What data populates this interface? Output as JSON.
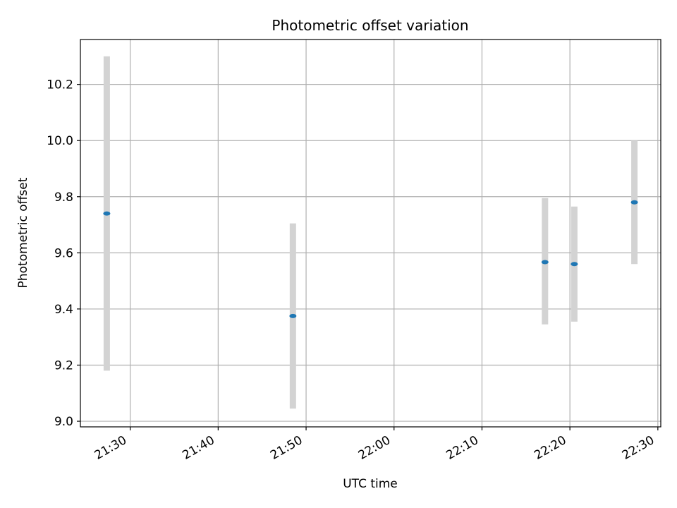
{
  "chart_data": {
    "type": "scatter",
    "title": "Photometric offset variation",
    "xlabel": "UTC time",
    "ylabel": "Photometric offset",
    "x_ticks": [
      "21:30",
      "21:40",
      "21:50",
      "22:00",
      "22:10",
      "22:20",
      "22:30"
    ],
    "y_ticks": [
      "9.0",
      "9.2",
      "9.4",
      "9.6",
      "9.8",
      "10.0",
      "10.2"
    ],
    "xlim": [
      "21:24:20",
      "22:30:20"
    ],
    "ylim": [
      8.98,
      10.36
    ],
    "grid": true,
    "colors": {
      "marker": "#1f77b4",
      "errorbar": "#d3d3d3",
      "grid": "#b0b0b0",
      "axes": "#000000"
    },
    "points": [
      {
        "x": "21:27:20",
        "y": 9.74,
        "ylow": 9.18,
        "yhigh": 10.3
      },
      {
        "x": "21:48:30",
        "y": 9.375,
        "ylow": 9.045,
        "yhigh": 9.705
      },
      {
        "x": "22:17:10",
        "y": 9.567,
        "ylow": 9.345,
        "yhigh": 9.795
      },
      {
        "x": "22:20:30",
        "y": 9.56,
        "ylow": 9.355,
        "yhigh": 9.765
      },
      {
        "x": "22:27:20",
        "y": 9.78,
        "ylow": 9.56,
        "yhigh": 10.0
      }
    ]
  }
}
